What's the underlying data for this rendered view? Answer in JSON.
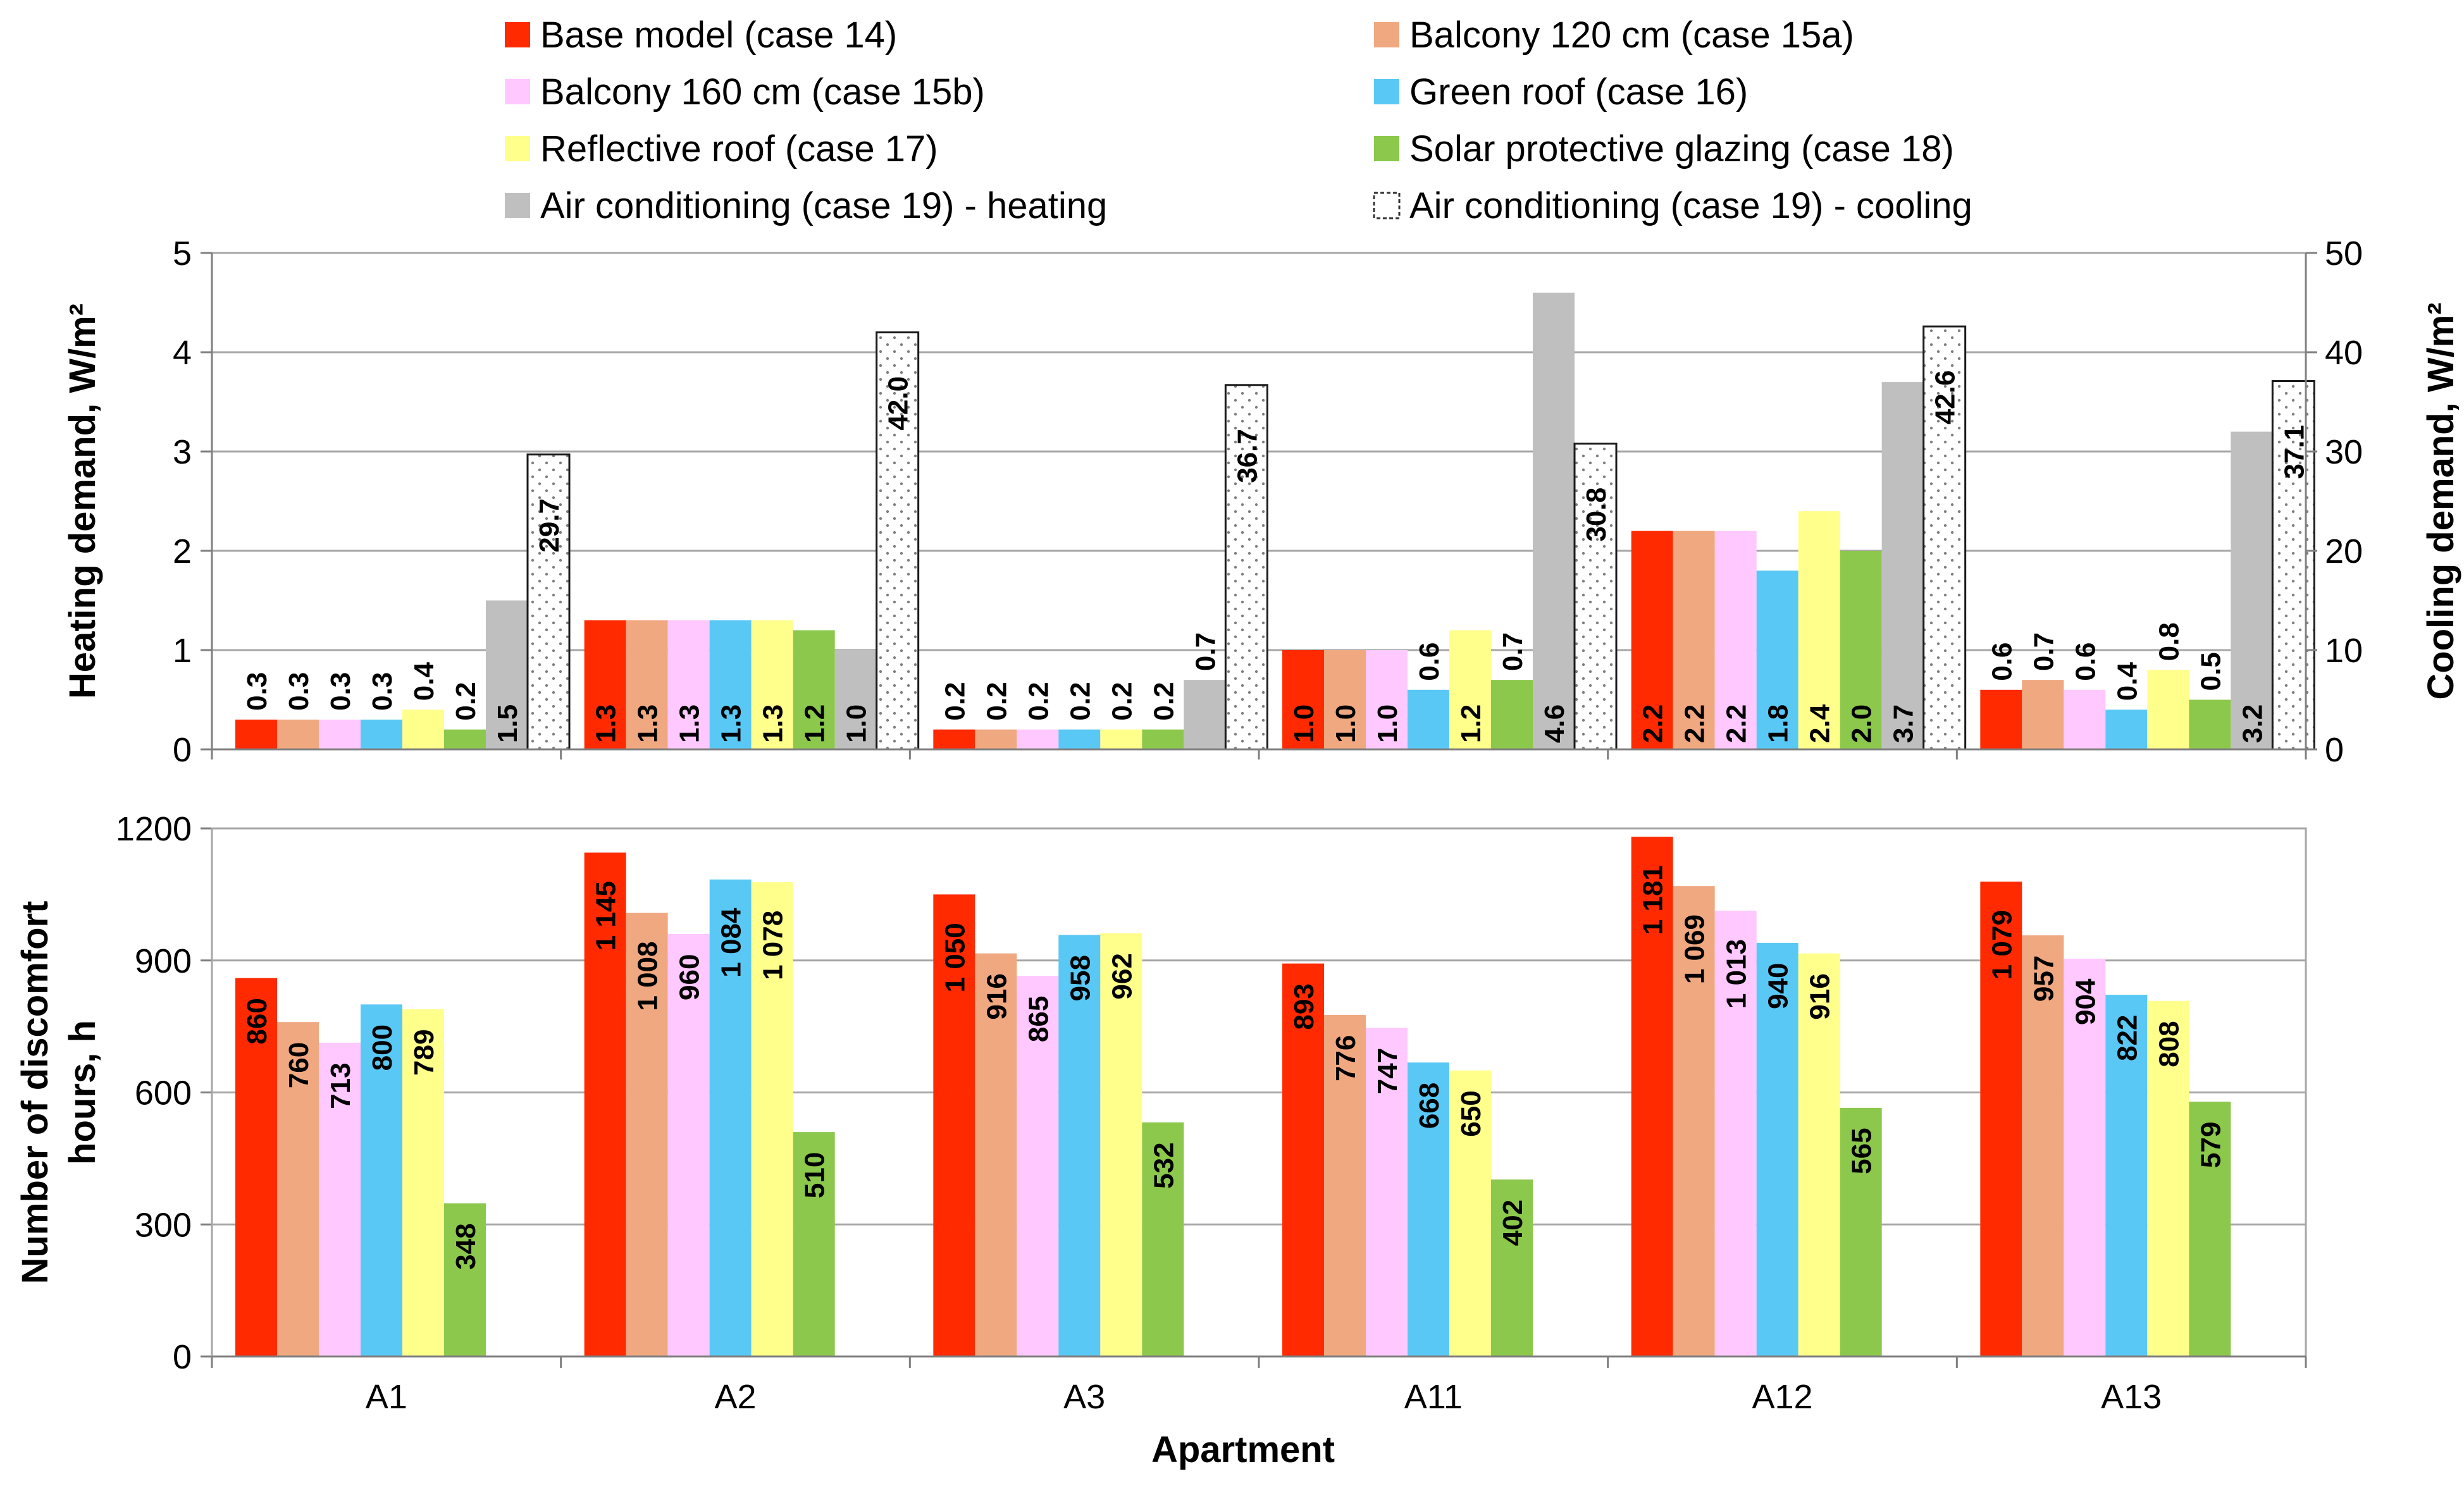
{
  "chart_data": {
    "type": "bar",
    "categories": [
      "A1",
      "A2",
      "A3",
      "A11",
      "A12",
      "A13"
    ],
    "xlabel": "Apartment",
    "legend": [
      {
        "name": "Base model (case 14)",
        "color": "#ff2a00"
      },
      {
        "name": "Balcony 120 cm (case 15a)",
        "color": "#f0a880"
      },
      {
        "name": "Balcony 160 cm (case 15b)",
        "color": "#ffc8ff"
      },
      {
        "name": "Green roof (case 16)",
        "color": "#5ac8f5"
      },
      {
        "name": "Reflective roof (case 17)",
        "color": "#ffff8c"
      },
      {
        "name": "Solar protective glazing (case 18)",
        "color": "#8cc84b"
      },
      {
        "name": "Air conditioning (case 19) - heating",
        "color": "#bfbfbf"
      },
      {
        "name": "Air conditioning (case 19) - cooling",
        "color": "#ffffff"
      }
    ],
    "top": {
      "ylabel": "Heating demand, W/m²",
      "y2label": "Cooling demand, W/m²",
      "ylim": [
        0,
        5
      ],
      "yticks": [
        "0",
        "1",
        "2",
        "3",
        "4",
        "5"
      ],
      "y2lim": [
        0,
        50
      ],
      "y2ticks": [
        "0",
        "10",
        "20",
        "30",
        "40",
        "50"
      ],
      "heating_series": [
        {
          "name": "Base model (case 14)",
          "values": [
            0.3,
            1.3,
            0.2,
            1.0,
            2.2,
            0.6
          ],
          "labels": [
            "0.3",
            "1.3",
            "0.2",
            "1.0",
            "2.2",
            "0.6"
          ]
        },
        {
          "name": "Balcony 120 cm (case 15a)",
          "values": [
            0.3,
            1.3,
            0.2,
            1.0,
            2.2,
            0.7
          ],
          "labels": [
            "0.3",
            "1.3",
            "0.2",
            "1.0",
            "2.2",
            "0.7"
          ]
        },
        {
          "name": "Balcony 160 cm (case 15b)",
          "values": [
            0.3,
            1.3,
            0.2,
            1.0,
            2.2,
            0.6
          ],
          "labels": [
            "0.3",
            "1.3",
            "0.2",
            "1.0",
            "2.2",
            "0.6"
          ]
        },
        {
          "name": "Green roof (case 16)",
          "values": [
            0.3,
            1.3,
            0.2,
            0.6,
            1.8,
            0.4
          ],
          "labels": [
            "0.3",
            "1.3",
            "0.2",
            "0.6",
            "1.8",
            "0.4"
          ]
        },
        {
          "name": "Reflective roof (case 17)",
          "values": [
            0.4,
            1.3,
            0.2,
            1.2,
            2.4,
            0.8
          ],
          "labels": [
            "0.4",
            "1.3",
            "0.2",
            "1.2",
            "2.4",
            "0.8"
          ]
        },
        {
          "name": "Solar protective glazing (case 18)",
          "values": [
            0.2,
            1.2,
            0.2,
            0.7,
            2.0,
            0.5
          ],
          "labels": [
            "0.2",
            "1.2",
            "0.2",
            "0.7",
            "2.0",
            "0.5"
          ]
        },
        {
          "name": "Air conditioning (case 19) - heating",
          "values": [
            1.5,
            1.0,
            0.7,
            4.6,
            3.7,
            3.2
          ],
          "labels": [
            "1.5",
            "1.0",
            "0.7",
            "4.6",
            "3.7",
            "3.2"
          ]
        }
      ],
      "cooling_series": {
        "name": "Air conditioning (case 19) - cooling",
        "values": [
          29.7,
          42.0,
          36.7,
          30.8,
          42.6,
          37.1
        ],
        "labels": [
          "29.7",
          "42.0",
          "36.7",
          "30.8",
          "42.6",
          "37.1"
        ]
      }
    },
    "bottom": {
      "ylabel_line1": "Number of discomfort",
      "ylabel_line2": "hours, h",
      "ylim": [
        0,
        1200
      ],
      "yticks": [
        "0",
        "300",
        "600",
        "900",
        "1200"
      ],
      "series": [
        {
          "name": "Base model (case 14)",
          "values": [
            860,
            1145,
            1050,
            893,
            1181,
            1079
          ],
          "labels": [
            "860",
            "1 145",
            "1 050",
            "893",
            "1 181",
            "1 079"
          ]
        },
        {
          "name": "Balcony 120 cm (case 15a)",
          "values": [
            760,
            1008,
            916,
            776,
            1069,
            957
          ],
          "labels": [
            "760",
            "1 008",
            "916",
            "776",
            "1 069",
            "957"
          ]
        },
        {
          "name": "Balcony 160 cm (case 15b)",
          "values": [
            713,
            960,
            865,
            747,
            1013,
            904
          ],
          "labels": [
            "713",
            "960",
            "865",
            "747",
            "1 013",
            "904"
          ]
        },
        {
          "name": "Green roof (case 16)",
          "values": [
            800,
            1084,
            958,
            668,
            940,
            822
          ],
          "labels": [
            "800",
            "1 084",
            "958",
            "668",
            "940",
            "822"
          ]
        },
        {
          "name": "Reflective roof (case 17)",
          "values": [
            789,
            1078,
            962,
            650,
            916,
            808
          ],
          "labels": [
            "789",
            "1 078",
            "962",
            "650",
            "916",
            "808"
          ]
        },
        {
          "name": "Solar protective glazing (case 18)",
          "values": [
            348,
            510,
            532,
            402,
            565,
            579
          ],
          "labels": [
            "348",
            "510",
            "532",
            "402",
            "565",
            "579"
          ]
        }
      ]
    }
  }
}
